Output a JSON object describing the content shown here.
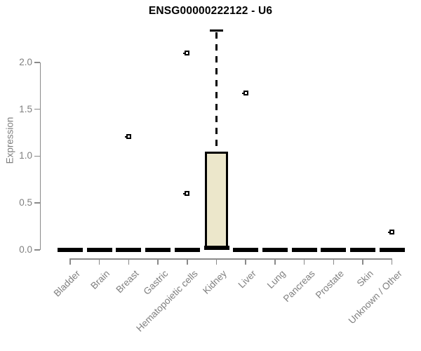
{
  "page": {
    "title": "ENSG00000222122 - U6"
  },
  "colors": {
    "box_fill": "#ECE7CB",
    "axis_line": "#8a8a8a",
    "axis_text": "#7f7f7f",
    "data_ink": "#000000",
    "background": "#ffffff"
  },
  "chart_data": {
    "type": "boxplot",
    "title": "ENSG00000222122 - U6",
    "xlabel": "",
    "ylabel": "Expression",
    "grid": false,
    "legend": "none",
    "axis_tick_range": [
      0.0,
      2.0
    ],
    "ylim": [
      0.0,
      2.4
    ],
    "yticks": [
      "0.0",
      "0.5",
      "1.0",
      "1.5",
      "2.0"
    ],
    "ytick_values": [
      0.0,
      0.5,
      1.0,
      1.5,
      2.0
    ],
    "categories": [
      "Bladder",
      "Brain",
      "Breast",
      "Gastric",
      "Hematopoietic cells",
      "Kidney",
      "Liver",
      "Lung",
      "Pancreas",
      "Prostate",
      "Skin",
      "Unknown / Other"
    ],
    "boxes": [
      {
        "category": "Bladder",
        "median": 0,
        "q1": 0,
        "q3": 0,
        "whisker_low": 0,
        "whisker_high": 0,
        "outliers": []
      },
      {
        "category": "Brain",
        "median": 0,
        "q1": 0,
        "q3": 0,
        "whisker_low": 0,
        "whisker_high": 0,
        "outliers": []
      },
      {
        "category": "Breast",
        "median": 0,
        "q1": 0,
        "q3": 0,
        "whisker_low": 0,
        "whisker_high": 0,
        "outliers": [
          1.21
        ]
      },
      {
        "category": "Gastric",
        "median": 0,
        "q1": 0,
        "q3": 0,
        "whisker_low": 0,
        "whisker_high": 0,
        "outliers": []
      },
      {
        "category": "Hematopoietic cells",
        "median": 0,
        "q1": 0,
        "q3": 0,
        "whisker_low": 0,
        "whisker_high": 0,
        "outliers": [
          2.1,
          0.6
        ]
      },
      {
        "category": "Kidney",
        "median": 0.02,
        "q1": 0.02,
        "q3": 1.05,
        "whisker_low": 0,
        "whisker_high": 2.34,
        "outliers": []
      },
      {
        "category": "Liver",
        "median": 0,
        "q1": 0,
        "q3": 0,
        "whisker_low": 0,
        "whisker_high": 0,
        "outliers": [
          1.67
        ]
      },
      {
        "category": "Lung",
        "median": 0,
        "q1": 0,
        "q3": 0,
        "whisker_low": 0,
        "whisker_high": 0,
        "outliers": []
      },
      {
        "category": "Pancreas",
        "median": 0,
        "q1": 0,
        "q3": 0,
        "whisker_low": 0,
        "whisker_high": 0,
        "outliers": []
      },
      {
        "category": "Prostate",
        "median": 0,
        "q1": 0,
        "q3": 0,
        "whisker_low": 0,
        "whisker_high": 0,
        "outliers": []
      },
      {
        "category": "Skin",
        "median": 0,
        "q1": 0,
        "q3": 0,
        "whisker_low": 0,
        "whisker_high": 0,
        "outliers": []
      },
      {
        "category": "Unknown / Other",
        "median": 0,
        "q1": 0,
        "q3": 0,
        "whisker_low": 0,
        "whisker_high": 0,
        "outliers": [
          0.19
        ]
      }
    ]
  }
}
